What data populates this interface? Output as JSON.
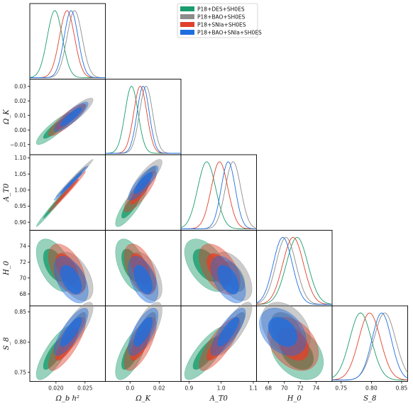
{
  "chart_data": {
    "type": "triangle",
    "parameters": [
      {
        "key": "obh2",
        "label": "Ω_b h²",
        "range": [
          0.0155,
          0.0285
        ],
        "ticks": [
          {
            "v": 0.02,
            "t": "0.020"
          },
          {
            "v": 0.025,
            "t": "0.025"
          }
        ]
      },
      {
        "key": "ok",
        "label": "Ω_K",
        "range": [
          -0.017,
          0.035
        ],
        "ticks": [
          {
            "v": -0.01,
            "t": "−0.01"
          },
          {
            "v": 0.0,
            "t": "0.00"
          },
          {
            "v": 0.01,
            "t": "0.01"
          },
          {
            "v": 0.02,
            "t": "0.02"
          },
          {
            "v": 0.03,
            "t": "0.03"
          }
        ],
        "xticks": [
          {
            "v": 0.0,
            "t": "0.0"
          },
          {
            "v": 0.02,
            "t": "0.02"
          }
        ]
      },
      {
        "key": "at0",
        "label": "A_T0",
        "range": [
          0.875,
          1.11
        ],
        "ticks": [
          {
            "v": 0.9,
            "t": "0.90"
          },
          {
            "v": 0.95,
            "t": "0.95"
          },
          {
            "v": 1.0,
            "t": "1.00"
          },
          {
            "v": 1.05,
            "t": "1.05"
          },
          {
            "v": 1.1,
            "t": "1.10"
          }
        ],
        "xticks": [
          {
            "v": 0.9,
            "t": "0.9"
          },
          {
            "v": 1.0,
            "t": "1.0"
          },
          {
            "v": 1.1,
            "t": "1.1"
          }
        ]
      },
      {
        "key": "h0",
        "label": "H_0",
        "range": [
          66.5,
          76
        ],
        "ticks": [
          {
            "v": 68,
            "t": "68"
          },
          {
            "v": 70,
            "t": "70"
          },
          {
            "v": 72,
            "t": "72"
          },
          {
            "v": 74,
            "t": "74"
          }
        ]
      },
      {
        "key": "s8",
        "label": "S_8",
        "range": [
          0.735,
          0.86
        ],
        "ticks": [
          {
            "v": 0.75,
            "t": "0.75"
          },
          {
            "v": 0.8,
            "t": "0.80"
          },
          {
            "v": 0.85,
            "t": "0.85"
          }
        ]
      }
    ],
    "legend_position": "top-right",
    "series": [
      {
        "name": "P18+DES+SH0ES",
        "color": "#1a9c6c",
        "mean": [
          0.0198,
          0.001,
          0.955,
          71.6,
          0.782
        ],
        "sigma": [
          0.0013,
          0.0045,
          0.028,
          1.35,
          0.018
        ]
      },
      {
        "name": "P18+BAO+SH0ES",
        "color": "#8c8c8c",
        "mean": [
          0.0232,
          0.011,
          1.037,
          70.2,
          0.822
        ],
        "sigma": [
          0.0013,
          0.0045,
          0.024,
          1.25,
          0.018
        ]
      },
      {
        "name": "P18+SNIa+SH0ES",
        "color": "#e0412b",
        "mean": [
          0.0219,
          0.007,
          0.995,
          71.1,
          0.797
        ],
        "sigma": [
          0.0013,
          0.0045,
          0.026,
          1.3,
          0.018
        ]
      },
      {
        "name": "P18+BAO+SNIa+SH0ES",
        "color": "#1f6fe0",
        "mean": [
          0.0226,
          0.009,
          1.022,
          69.8,
          0.817
        ],
        "sigma": [
          0.0012,
          0.0042,
          0.022,
          1.2,
          0.016
        ]
      }
    ],
    "correlations": {
      "1,0": 0.88,
      "2,0": 0.99,
      "2,1": 0.85,
      "3,0": -0.5,
      "3,1": -0.5,
      "3,2": -0.5,
      "4,0": 0.8,
      "4,1": 0.7,
      "4,2": 0.8,
      "4,3": -0.35
    }
  }
}
